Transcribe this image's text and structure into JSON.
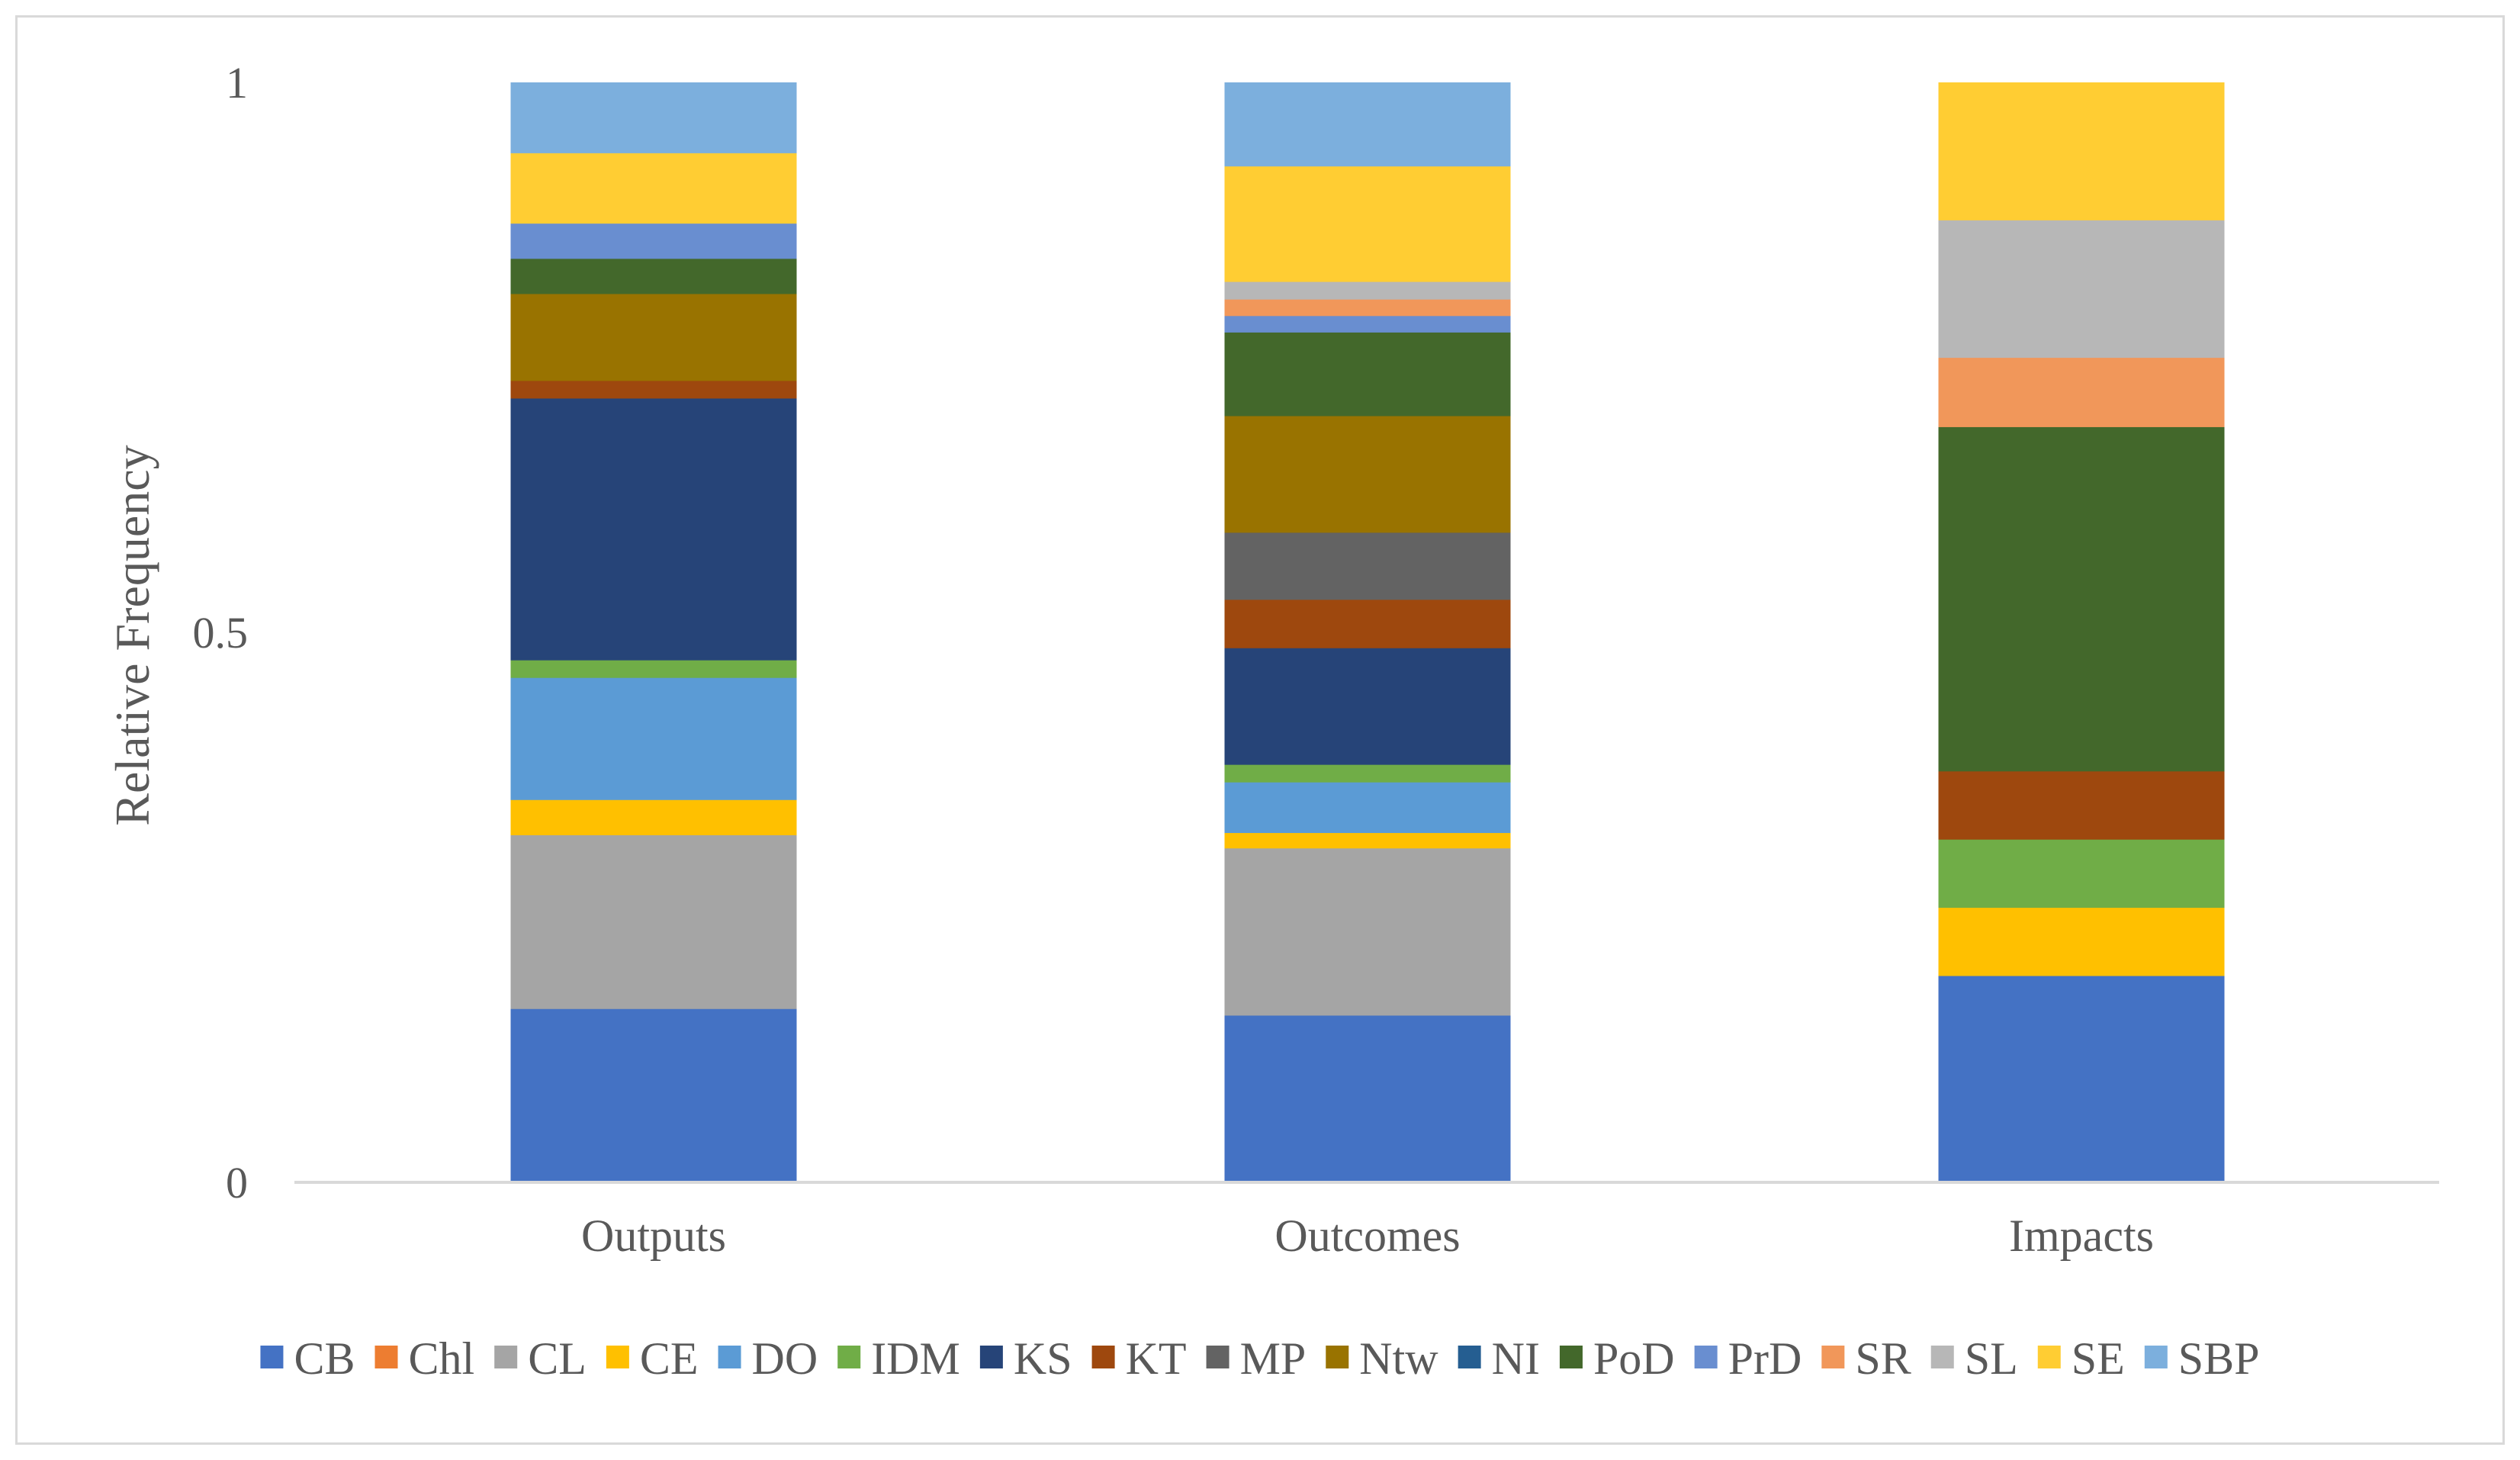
{
  "chart_data": {
    "type": "bar",
    "stacked": true,
    "title": "",
    "xlabel": "",
    "ylabel": "Relative Frequency",
    "ylim": [
      0,
      1
    ],
    "yticks": [
      0,
      0.5,
      1
    ],
    "ytick_labels": [
      "0",
      "0.5",
      "1"
    ],
    "grid": false,
    "legend_position": "bottom",
    "categories": [
      "Outputs",
      "Outcomes",
      "Impacts"
    ],
    "series": [
      {
        "name": "CB",
        "color": "#4472C4",
        "values": [
          0.158,
          0.152,
          0.188
        ]
      },
      {
        "name": "Chl",
        "color": "#ED7D31",
        "values": [
          0.0,
          0.0,
          0.0
        ]
      },
      {
        "name": "CL",
        "color": "#A5A5A5",
        "values": [
          0.158,
          0.152,
          0.0
        ]
      },
      {
        "name": "CE",
        "color": "#FFC000",
        "values": [
          0.032,
          0.014,
          0.062
        ]
      },
      {
        "name": "DO",
        "color": "#5B9BD5",
        "values": [
          0.111,
          0.046,
          0.0
        ]
      },
      {
        "name": "IDM",
        "color": "#70AD47",
        "values": [
          0.016,
          0.016,
          0.062
        ]
      },
      {
        "name": "KS",
        "color": "#264478",
        "values": [
          0.238,
          0.106,
          0.0
        ]
      },
      {
        "name": "KT",
        "color": "#9E480E",
        "values": [
          0.016,
          0.044,
          0.062
        ]
      },
      {
        "name": "MP",
        "color": "#636363",
        "values": [
          0.0,
          0.061,
          0.0
        ]
      },
      {
        "name": "Ntw",
        "color": "#997300",
        "values": [
          0.079,
          0.106,
          0.0
        ]
      },
      {
        "name": "NI",
        "color": "#255E91",
        "values": [
          0.0,
          0.0,
          0.0
        ]
      },
      {
        "name": "PoD",
        "color": "#43682B",
        "values": [
          0.032,
          0.076,
          0.313
        ]
      },
      {
        "name": "PrD",
        "color": "#698ED0",
        "values": [
          0.032,
          0.015,
          0.0
        ]
      },
      {
        "name": "SR",
        "color": "#F1975A",
        "values": [
          0.0,
          0.015,
          0.063
        ]
      },
      {
        "name": "SL",
        "color": "#B7B7B7",
        "values": [
          0.0,
          0.016,
          0.125
        ]
      },
      {
        "name": "SE",
        "color": "#FFCD33",
        "values": [
          0.064,
          0.105,
          0.125
        ]
      },
      {
        "name": "SBP",
        "color": "#7CAFDD",
        "values": [
          0.064,
          0.076,
          0.0
        ]
      }
    ]
  }
}
